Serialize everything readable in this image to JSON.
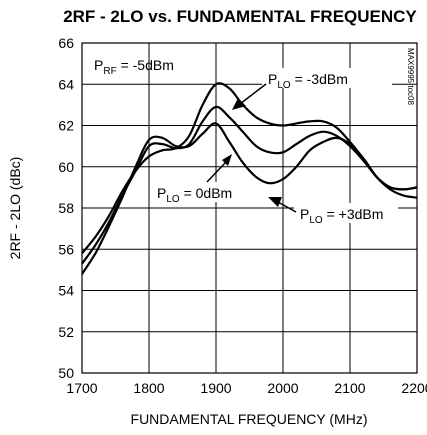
{
  "chart_data": {
    "type": "line",
    "title": "2RF - 2LO vs. FUNDAMENTAL FREQUENCY",
    "xlabel": "FUNDAMENTAL FREQUENCY (MHz)",
    "ylabel": "2RF - 2LO (dBc)",
    "xlim": [
      1700,
      2200
    ],
    "ylim": [
      50,
      66
    ],
    "xticks": [
      1700,
      1800,
      1900,
      2000,
      2100,
      2200
    ],
    "yticks": [
      50,
      52,
      54,
      56,
      58,
      60,
      62,
      64,
      66
    ],
    "grid": true,
    "figure_code": "MAX9995 toc08",
    "annotations": [
      {
        "id": "prf",
        "main": "P",
        "sub": "RF",
        "rest": " = -5dBm"
      },
      {
        "id": "plo_m3",
        "main": "P",
        "sub": "LO",
        "rest": " = -3dBm"
      },
      {
        "id": "plo_0",
        "main": "P",
        "sub": "LO",
        "rest": " = 0dBm"
      },
      {
        "id": "plo_p3",
        "main": "P",
        "sub": "LO",
        "rest": " = +3dBm"
      }
    ],
    "series": [
      {
        "x": [
          1700,
          1720,
          1740,
          1760,
          1780,
          1800,
          1820,
          1840,
          1860,
          1880,
          1900,
          1920,
          1940,
          1960,
          1980,
          2000,
          2020,
          2040,
          2060,
          2080,
          2100,
          2120,
          2140,
          2160,
          2180,
          2200
        ],
        "values": [
          55.8,
          56.6,
          57.6,
          58.8,
          59.8,
          60.5,
          60.8,
          60.9,
          61.5,
          63.0,
          64.0,
          63.8,
          63.0,
          62.4,
          62.1,
          62.0,
          62.1,
          62.2,
          62.2,
          61.9,
          61.2,
          60.4,
          59.5,
          59.0,
          58.9,
          59.0
        ]
      },
      {
        "x": [
          1700,
          1720,
          1740,
          1760,
          1780,
          1800,
          1820,
          1840,
          1860,
          1880,
          1900,
          1920,
          1940,
          1960,
          1980,
          2000,
          2020,
          2040,
          2060,
          2080,
          2100,
          2120,
          2140,
          2160,
          2180,
          2200
        ],
        "values": [
          55.3,
          56.2,
          57.3,
          58.6,
          59.8,
          61.0,
          61.1,
          60.9,
          61.1,
          62.2,
          62.9,
          62.4,
          61.7,
          61.0,
          60.7,
          60.7,
          61.1,
          61.5,
          61.7,
          61.5,
          61.0,
          60.3,
          59.5,
          59.0,
          58.9,
          59.0
        ]
      },
      {
        "x": [
          1700,
          1720,
          1740,
          1760,
          1780,
          1800,
          1820,
          1840,
          1860,
          1880,
          1900,
          1920,
          1940,
          1960,
          1980,
          2000,
          2020,
          2040,
          2060,
          2080,
          2100,
          2120,
          2140,
          2160,
          2180,
          2200
        ],
        "values": [
          54.8,
          55.8,
          57.1,
          58.5,
          60.0,
          61.3,
          61.4,
          61.0,
          61.0,
          61.6,
          62.1,
          61.2,
          60.2,
          59.5,
          59.2,
          59.4,
          60.0,
          60.8,
          61.2,
          61.4,
          61.1,
          60.4,
          59.5,
          58.9,
          58.6,
          58.5
        ]
      }
    ]
  }
}
